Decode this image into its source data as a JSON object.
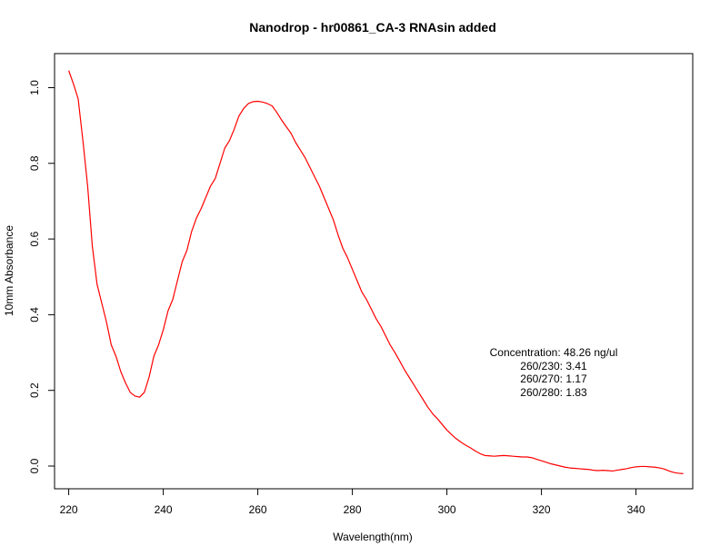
{
  "chart_data": {
    "type": "line",
    "title": "Nanodrop - hr00861_CA-3 RNAsin added",
    "xlabel": "Wavelength(nm)",
    "ylabel": "10mm Absorbance",
    "xlim": [
      217,
      352
    ],
    "ylim": [
      -0.06,
      1.09
    ],
    "xticks": [
      220,
      240,
      260,
      280,
      300,
      320,
      340
    ],
    "yticks": [
      0.0,
      0.2,
      0.4,
      0.6,
      0.8,
      1.0
    ],
    "xtick_labels": [
      "220",
      "240",
      "260",
      "280",
      "300",
      "320",
      "340"
    ],
    "ytick_labels": [
      "0.0",
      "0.2",
      "0.4",
      "0.6",
      "0.8",
      "1.0"
    ],
    "grid": false,
    "series": [
      {
        "color": "#ff0000",
        "x": [
          220,
          221,
          222,
          223,
          224,
          225,
          226,
          227,
          228,
          229,
          230,
          231,
          232,
          233,
          234,
          235,
          236,
          237,
          238,
          239,
          240,
          241,
          242,
          243,
          244,
          245,
          246,
          247,
          248,
          249,
          250,
          251,
          252,
          253,
          254,
          255,
          256,
          257,
          258,
          259,
          260,
          261,
          262,
          263,
          264,
          265,
          266,
          267,
          268,
          269,
          270,
          271,
          272,
          273,
          274,
          275,
          276,
          277,
          278,
          279,
          280,
          281,
          282,
          283,
          284,
          285,
          286,
          287,
          288,
          289,
          290,
          291,
          292,
          293,
          294,
          295,
          296,
          297,
          298,
          299,
          300,
          301,
          302,
          303,
          304,
          305,
          306,
          307,
          308,
          309,
          310,
          311,
          312,
          313,
          314,
          315,
          316,
          317,
          318,
          319,
          320,
          321,
          322,
          323,
          324,
          325,
          326,
          327,
          328,
          329,
          330,
          331,
          332,
          333,
          334,
          335,
          336,
          337,
          338,
          339,
          340,
          341,
          342,
          343,
          344,
          345,
          346,
          347,
          348,
          349,
          350
        ],
        "y": [
          1.045,
          1.01,
          0.97,
          0.86,
          0.74,
          0.58,
          0.48,
          0.43,
          0.38,
          0.32,
          0.29,
          0.25,
          0.22,
          0.195,
          0.185,
          0.182,
          0.195,
          0.235,
          0.29,
          0.32,
          0.36,
          0.41,
          0.44,
          0.49,
          0.54,
          0.57,
          0.62,
          0.655,
          0.68,
          0.71,
          0.74,
          0.76,
          0.8,
          0.84,
          0.86,
          0.89,
          0.925,
          0.945,
          0.958,
          0.963,
          0.964,
          0.962,
          0.958,
          0.952,
          0.935,
          0.915,
          0.897,
          0.88,
          0.855,
          0.835,
          0.815,
          0.79,
          0.765,
          0.74,
          0.71,
          0.68,
          0.65,
          0.61,
          0.575,
          0.55,
          0.52,
          0.49,
          0.46,
          0.44,
          0.415,
          0.39,
          0.37,
          0.345,
          0.32,
          0.3,
          0.278,
          0.255,
          0.235,
          0.215,
          0.195,
          0.175,
          0.155,
          0.138,
          0.125,
          0.11,
          0.095,
          0.083,
          0.072,
          0.063,
          0.055,
          0.048,
          0.04,
          0.033,
          0.028,
          0.027,
          0.026,
          0.027,
          0.028,
          0.027,
          0.026,
          0.025,
          0.024,
          0.024,
          0.022,
          0.018,
          0.014,
          0.01,
          0.006,
          0.003,
          0.0,
          -0.003,
          -0.005,
          -0.006,
          -0.007,
          -0.008,
          -0.009,
          -0.011,
          -0.012,
          -0.011,
          -0.012,
          -0.013,
          -0.011,
          -0.009,
          -0.007,
          -0.004,
          -0.002,
          -0.001,
          -0.001,
          -0.002,
          -0.003,
          -0.005,
          -0.008,
          -0.013,
          -0.017,
          -0.019,
          -0.02
        ]
      }
    ],
    "annotations": [
      "Concentration: 48.26 ng/ul",
      "260/230: 3.41",
      "260/270: 1.17",
      "260/280: 1.83"
    ]
  }
}
